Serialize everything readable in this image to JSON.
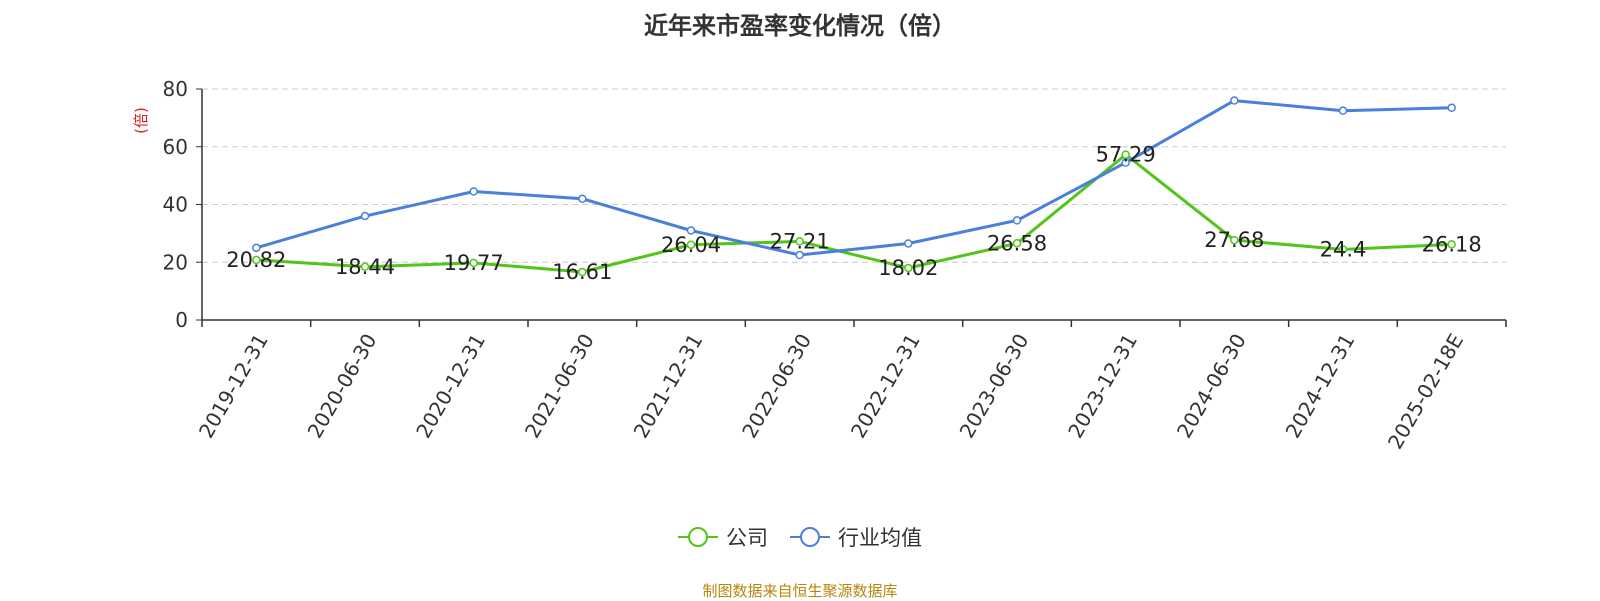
{
  "chart_data": {
    "type": "line",
    "title": "近年来市盈率变化情况（倍）",
    "ylabel": "(倍)",
    "xlabel": "",
    "ylim": [
      0,
      80
    ],
    "yticks": [
      0,
      20,
      40,
      60,
      80
    ],
    "grid": true,
    "legend_position": "bottom",
    "categories": [
      "2019-12-31",
      "2020-06-30",
      "2020-12-31",
      "2021-06-30",
      "2021-12-31",
      "2022-06-30",
      "2022-12-31",
      "2023-06-30",
      "2023-12-31",
      "2024-06-30",
      "2024-12-31",
      "2025-02-18E"
    ],
    "series": [
      {
        "name": "公司",
        "color": "#52c41a",
        "values": [
          20.82,
          18.44,
          19.77,
          16.61,
          26.04,
          27.21,
          18.02,
          26.58,
          57.29,
          27.68,
          24.4,
          26.18
        ],
        "labels": [
          "20.82",
          "18.44",
          "19.77",
          "16.61",
          "26.04",
          "27.21",
          "18.02",
          "26.58",
          "57.29",
          "27.68",
          "24.4",
          "26.18"
        ]
      },
      {
        "name": "行业均值",
        "color": "#4a7fdc",
        "values": [
          25,
          36,
          44.5,
          42,
          31,
          22.5,
          26.5,
          34.5,
          54.5,
          76,
          72.5,
          73.5
        ]
      }
    ]
  },
  "footer": {
    "source": "制图数据来自恒生聚源数据库"
  }
}
